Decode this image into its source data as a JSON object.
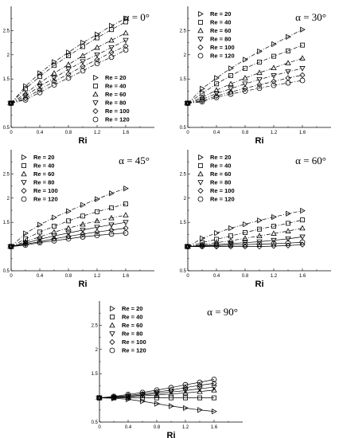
{
  "chart_data": [
    {
      "type": "line",
      "title": "α = 0°",
      "xlabel": "Ri",
      "ylabel": "",
      "xlim": [
        0,
        2
      ],
      "ylim": [
        0.5,
        3
      ],
      "xticks": [
        "0",
        "0.4",
        "0.8",
        "1.2",
        "1.6"
      ],
      "yticks": [
        "0.5",
        "1",
        "1.5",
        "2",
        "2.5"
      ],
      "x": [
        0,
        0.2,
        0.4,
        0.6,
        0.8,
        1.0,
        1.2,
        1.4,
        1.6
      ],
      "legend_position": "right",
      "series": [
        {
          "name": "Re = 20",
          "marker": "tri-right",
          "values": [
            1.0,
            1.35,
            1.62,
            1.85,
            2.05,
            2.25,
            2.42,
            2.6,
            2.75
          ]
        },
        {
          "name": "Re = 40",
          "marker": "square",
          "values": [
            1.0,
            1.3,
            1.55,
            1.78,
            1.98,
            2.17,
            2.35,
            2.52,
            2.68
          ]
        },
        {
          "name": "Re = 60",
          "marker": "tri-up",
          "values": [
            1.0,
            1.2,
            1.42,
            1.62,
            1.8,
            1.98,
            2.15,
            2.3,
            2.45
          ]
        },
        {
          "name": "Re = 80",
          "marker": "tri-down",
          "values": [
            1.0,
            1.15,
            1.35,
            1.52,
            1.7,
            1.86,
            2.0,
            2.15,
            2.3
          ]
        },
        {
          "name": "Re = 100",
          "marker": "diamond",
          "values": [
            1.0,
            1.1,
            1.28,
            1.45,
            1.6,
            1.76,
            1.9,
            2.05,
            2.18
          ]
        },
        {
          "name": "Re = 120",
          "marker": "circle",
          "values": [
            1.0,
            1.07,
            1.22,
            1.38,
            1.52,
            1.67,
            1.82,
            1.95,
            2.1
          ]
        }
      ]
    },
    {
      "type": "line",
      "title": "α = 30°",
      "xlabel": "Ri",
      "ylabel": "",
      "xlim": [
        0,
        2
      ],
      "ylim": [
        0.5,
        3
      ],
      "xticks": [
        "0",
        "0.4",
        "0.8",
        "1.2",
        "1.6"
      ],
      "yticks": [
        "0.5",
        "1",
        "1.5",
        "2",
        "2.5"
      ],
      "x": [
        0,
        0.2,
        0.4,
        0.6,
        0.8,
        1.0,
        1.2,
        1.4,
        1.6
      ],
      "legend_position": "top-left",
      "series": [
        {
          "name": "Re = 20",
          "marker": "tri-right",
          "values": [
            1.0,
            1.3,
            1.52,
            1.72,
            1.9,
            2.07,
            2.22,
            2.37,
            2.52
          ]
        },
        {
          "name": "Re = 40",
          "marker": "square",
          "values": [
            1.0,
            1.2,
            1.4,
            1.57,
            1.72,
            1.85,
            1.97,
            2.08,
            2.2
          ]
        },
        {
          "name": "Re = 60",
          "marker": "tri-up",
          "values": [
            1.0,
            1.12,
            1.27,
            1.4,
            1.52,
            1.63,
            1.73,
            1.83,
            1.93
          ]
        },
        {
          "name": "Re = 80",
          "marker": "tri-down",
          "values": [
            1.0,
            1.08,
            1.2,
            1.3,
            1.4,
            1.49,
            1.57,
            1.65,
            1.72
          ]
        },
        {
          "name": "Re = 100",
          "marker": "diamond",
          "values": [
            1.0,
            1.05,
            1.15,
            1.23,
            1.31,
            1.38,
            1.45,
            1.52,
            1.58
          ]
        },
        {
          "name": "Re = 120",
          "marker": "circle",
          "values": [
            1.0,
            1.03,
            1.12,
            1.19,
            1.25,
            1.31,
            1.37,
            1.42,
            1.47
          ]
        }
      ]
    },
    {
      "type": "line",
      "title": "α = 45°",
      "xlabel": "Ri",
      "ylabel": "",
      "xlim": [
        0,
        2
      ],
      "ylim": [
        0.5,
        3
      ],
      "xticks": [
        "0",
        "0.4",
        "0.8",
        "1.2",
        "1.6"
      ],
      "yticks": [
        "0.5",
        "1",
        "1.5",
        "2",
        "2.5"
      ],
      "x": [
        0,
        0.2,
        0.4,
        0.6,
        0.8,
        1.0,
        1.2,
        1.4,
        1.6
      ],
      "legend_position": "top-left",
      "series": [
        {
          "name": "Re = 20",
          "marker": "tri-right",
          "values": [
            1.0,
            1.27,
            1.45,
            1.6,
            1.73,
            1.86,
            1.98,
            2.1,
            2.2
          ]
        },
        {
          "name": "Re = 40",
          "marker": "square",
          "values": [
            1.0,
            1.16,
            1.3,
            1.42,
            1.53,
            1.63,
            1.72,
            1.8,
            1.88
          ]
        },
        {
          "name": "Re = 60",
          "marker": "tri-up",
          "values": [
            1.0,
            1.1,
            1.2,
            1.3,
            1.38,
            1.46,
            1.53,
            1.59,
            1.65
          ]
        },
        {
          "name": "Re = 80",
          "marker": "tri-down",
          "values": [
            1.0,
            1.07,
            1.15,
            1.22,
            1.28,
            1.34,
            1.4,
            1.45,
            1.5
          ]
        },
        {
          "name": "Re = 100",
          "marker": "diamond",
          "values": [
            1.0,
            1.05,
            1.1,
            1.16,
            1.21,
            1.26,
            1.3,
            1.34,
            1.38
          ]
        },
        {
          "name": "Re = 120",
          "marker": "circle",
          "values": [
            1.0,
            1.03,
            1.08,
            1.12,
            1.16,
            1.2,
            1.23,
            1.26,
            1.28
          ]
        }
      ]
    },
    {
      "type": "line",
      "title": "α = 60°",
      "xlabel": "Ri",
      "ylabel": "",
      "xlim": [
        0,
        2
      ],
      "ylim": [
        0.5,
        3
      ],
      "xticks": [
        "0",
        "0.4",
        "0.8",
        "1.2",
        "1.6"
      ],
      "yticks": [
        "0.5",
        "1",
        "1.5",
        "2",
        "2.5"
      ],
      "x": [
        0,
        0.2,
        0.4,
        0.6,
        0.8,
        1.0,
        1.2,
        1.4,
        1.6
      ],
      "legend_position": "top-left",
      "series": [
        {
          "name": "Re = 20",
          "marker": "tri-right",
          "values": [
            1.0,
            1.17,
            1.28,
            1.38,
            1.46,
            1.54,
            1.61,
            1.68,
            1.74
          ]
        },
        {
          "name": "Re = 40",
          "marker": "square",
          "values": [
            1.0,
            1.08,
            1.15,
            1.22,
            1.29,
            1.36,
            1.42,
            1.48,
            1.55
          ]
        },
        {
          "name": "Re = 60",
          "marker": "tri-up",
          "values": [
            1.0,
            1.04,
            1.08,
            1.12,
            1.17,
            1.22,
            1.27,
            1.32,
            1.38
          ]
        },
        {
          "name": "Re = 80",
          "marker": "tri-down",
          "values": [
            1.0,
            1.02,
            1.04,
            1.06,
            1.08,
            1.1,
            1.13,
            1.16,
            1.2
          ]
        },
        {
          "name": "Re = 100",
          "marker": "diamond",
          "values": [
            1.0,
            1.0,
            1.0,
            1.0,
            1.0,
            1.0,
            1.01,
            1.02,
            1.04
          ]
        },
        {
          "name": "Re = 120",
          "marker": "circle",
          "values": [
            1.0,
            1.01,
            1.02,
            1.03,
            1.04,
            1.05,
            1.06,
            1.07,
            1.09
          ]
        }
      ]
    },
    {
      "type": "line",
      "title": "α = 90°",
      "xlabel": "Ri",
      "ylabel": "",
      "xlim": [
        0,
        2
      ],
      "ylim": [
        0.5,
        3
      ],
      "xticks": [
        "0",
        "0.4",
        "0.8",
        "1.2",
        "1.6"
      ],
      "yticks": [
        "0.5",
        "1",
        "1.5",
        "2",
        "2.5"
      ],
      "x": [
        0,
        0.2,
        0.4,
        0.6,
        0.8,
        1.0,
        1.2,
        1.4,
        1.6
      ],
      "legend_position": "top-left",
      "series": [
        {
          "name": "Re = 20",
          "marker": "tri-right",
          "values": [
            1.0,
            0.99,
            0.97,
            0.93,
            0.88,
            0.83,
            0.79,
            0.75,
            0.72
          ]
        },
        {
          "name": "Re = 40",
          "marker": "square",
          "values": [
            1.0,
            1.0,
            1.0,
            1.0,
            1.0,
            1.0,
            1.0,
            1.0,
            1.0
          ]
        },
        {
          "name": "Re = 60",
          "marker": "tri-up",
          "values": [
            1.0,
            1.01,
            1.02,
            1.04,
            1.06,
            1.08,
            1.1,
            1.13,
            1.16
          ]
        },
        {
          "name": "Re = 80",
          "marker": "tri-down",
          "values": [
            1.0,
            1.01,
            1.03,
            1.06,
            1.09,
            1.12,
            1.15,
            1.19,
            1.22
          ]
        },
        {
          "name": "Re = 100",
          "marker": "diamond",
          "values": [
            1.0,
            1.02,
            1.05,
            1.08,
            1.12,
            1.16,
            1.21,
            1.26,
            1.3
          ]
        },
        {
          "name": "Re = 120",
          "marker": "circle",
          "values": [
            1.0,
            1.03,
            1.07,
            1.11,
            1.16,
            1.21,
            1.27,
            1.32,
            1.38
          ]
        }
      ]
    }
  ]
}
